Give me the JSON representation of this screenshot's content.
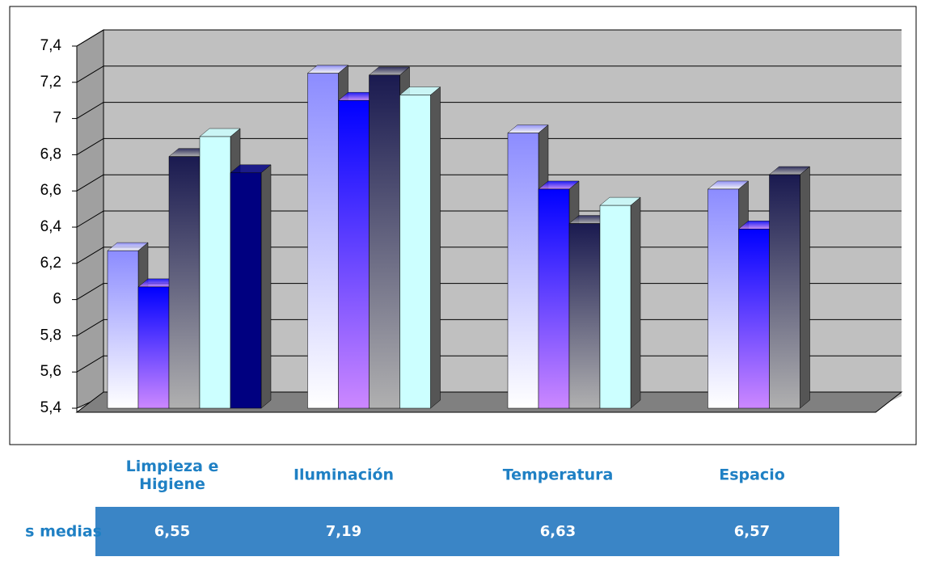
{
  "chart_data": {
    "type": "bar3d",
    "categories": [
      "Limpieza e Higiene",
      "Iluminación",
      "Temperatura",
      "Espacio"
    ],
    "series": [
      {
        "color": [
          "#8c8cff",
          "#ffffff"
        ],
        "values": [
          6.27,
          7.25,
          6.92,
          6.61
        ]
      },
      {
        "color": [
          "#0000ff",
          "#cc88ff"
        ],
        "values": [
          6.07,
          7.1,
          6.61,
          6.39
        ]
      },
      {
        "color": [
          "#1a1a50",
          "#b0b0b0"
        ],
        "values": [
          6.79,
          7.24,
          6.42,
          6.69
        ]
      },
      {
        "color": [
          "#ccffff",
          "#ccffff"
        ],
        "values": [
          6.9,
          7.13,
          6.52,
          null
        ]
      },
      {
        "color": [
          "#000080",
          "#000080"
        ],
        "values": [
          6.7,
          null,
          null,
          null
        ]
      }
    ],
    "ylim": [
      5.4,
      7.4
    ],
    "yticks": [
      {
        "value": 5.4,
        "label": "5,4"
      },
      {
        "value": 5.6,
        "label": "5,6"
      },
      {
        "value": 5.8,
        "label": "5,8"
      },
      6,
      {
        "value": 6.2,
        "label": "6,2"
      },
      {
        "value": 6.4,
        "label": "6,4"
      },
      {
        "value": 6.6,
        "label": "6,6"
      },
      {
        "value": 6.8,
        "label": "6,8"
      },
      7,
      {
        "value": 7.2,
        "label": "7,2"
      },
      {
        "value": 7.4,
        "label": "7,4"
      }
    ],
    "grid": true
  },
  "table": {
    "row_label": "s medias",
    "values": [
      "6,55",
      "7,19",
      "6,63",
      "6,57"
    ]
  }
}
